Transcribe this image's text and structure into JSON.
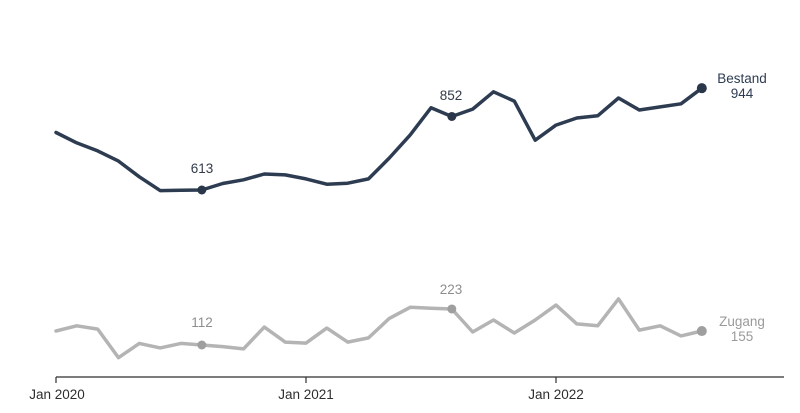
{
  "chart_data": {
    "type": "line",
    "title": "",
    "x": [
      "Jan 2020",
      "Feb 2020",
      "Mar 2020",
      "Apr 2020",
      "May 2020",
      "Jun 2020",
      "Jul 2020",
      "Aug 2020",
      "Sep 2020",
      "Oct 2020",
      "Nov 2020",
      "Dec 2020",
      "Jan 2021",
      "Feb 2021",
      "Mar 2021",
      "Apr 2021",
      "May 2021",
      "Jun 2021",
      "Jul 2021",
      "Aug 2021",
      "Sep 2021",
      "Oct 2021",
      "Nov 2021",
      "Dec 2021",
      "Jan 2022",
      "Feb 2022",
      "Mar 2022",
      "Apr 2022",
      "May 2022",
      "Jun 2022",
      "Jul 2022",
      "Aug 2022"
    ],
    "series": [
      {
        "name": "Bestand",
        "color": "#2e3c52",
        "marker_color": "#2a3649",
        "end_label": "944",
        "values": [
          800,
          766,
          740,
          707,
          656,
          611,
          612,
          613,
          634,
          646,
          665,
          662,
          649,
          632,
          635,
          649,
          717,
          792,
          880,
          852,
          876,
          932,
          902,
          775,
          824,
          847,
          854,
          912,
          873,
          883,
          893,
          944
        ]
      },
      {
        "name": "Zugang",
        "color": "#b4b4b4",
        "marker_color": "#9f9f9f",
        "end_label": "155",
        "values": [
          155,
          171,
          161,
          73,
          117,
          103,
          117,
          112,
          107,
          100,
          167,
          121,
          118,
          164,
          121,
          134,
          194,
          228,
          225,
          223,
          152,
          189,
          149,
          189,
          235,
          177,
          171,
          254,
          158,
          171,
          140,
          155
        ]
      }
    ],
    "annotations": [
      {
        "series": 0,
        "index": 7,
        "label": "613"
      },
      {
        "series": 0,
        "index": 19,
        "label": "852"
      },
      {
        "series": 1,
        "index": 7,
        "label": "112"
      },
      {
        "series": 1,
        "index": 19,
        "label": "223"
      }
    ],
    "x_ticks": [
      {
        "index": 0,
        "label": "Jan 2020"
      },
      {
        "index": 12,
        "label": "Jan 2021"
      },
      {
        "index": 24,
        "label": "Jan 2022"
      }
    ],
    "axis_color": "#2f2f2f",
    "grid": false,
    "legend_position": "end-of-line"
  }
}
